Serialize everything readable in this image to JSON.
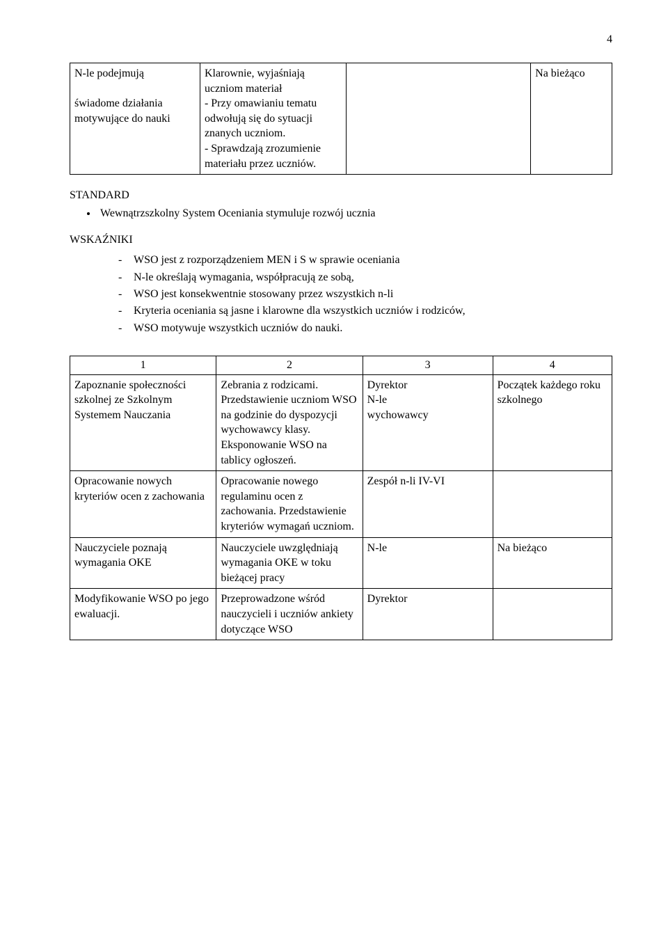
{
  "page_number": "4",
  "top_table": {
    "rows": [
      {
        "c1": "N-le podejmują\n\nświadome działania motywujące do nauki",
        "c2": "Klarownie, wyjaśniają uczniom materiał\n- Przy omawianiu tematu odwołują się do sytuacji znanych uczniom.\n- Sprawdzają zrozumienie materiału przez uczniów.",
        "c3": "",
        "c4": "Na bieżąco"
      }
    ]
  },
  "standard": {
    "title": "STANDARD",
    "bullet": "Wewnątrzszkolny System Oceniania stymuluje rozwój ucznia"
  },
  "wskazniki": {
    "title": "WSKAŹNIKI",
    "items": [
      "WSO jest z rozporządzeniem MEN i S w sprawie oceniania",
      "N-le określają wymagania, współpracują ze sobą,",
      "WSO jest konsekwentnie stosowany przez wszystkich n-li",
      "Kryteria oceniania są jasne i klarowne dla wszystkich uczniów i rodziców,",
      "WSO motywuje wszystkich uczniów do nauki."
    ]
  },
  "bottom_table": {
    "header_nums": [
      "1",
      "2",
      "3",
      "4"
    ],
    "rows": [
      {
        "c1": "Zapoznanie społeczności szkolnej ze Szkolnym Systemem Nauczania",
        "c2": "Zebrania z rodzicami. Przedstawienie uczniom WSO na godzinie do dyspozycji wychowawcy klasy. Eksponowanie WSO na tablicy ogłoszeń.",
        "c3": "Dyrektor\nN-le\nwychowawcy",
        "c4": "Początek każdego roku szkolnego"
      },
      {
        "c1": "Opracowanie nowych kryteriów ocen z zachowania",
        "c2": "Opracowanie nowego regulaminu ocen z zachowania. Przedstawienie kryteriów wymagań uczniom.",
        "c3": " Zespół n-li IV-VI",
        "c4": ""
      },
      {
        "c1": "Nauczyciele poznają wymagania OKE",
        "c2": "Nauczyciele uwzględniają wymagania OKE w toku bieżącej pracy",
        "c3": "N-le",
        "c4": "Na bieżąco"
      },
      {
        "c1": "Modyfikowanie WSO po jego ewaluacji.",
        "c2": "Przeprowadzone wśród nauczycieli i uczniów ankiety dotyczące WSO",
        "c3": "Dyrektor",
        "c4": ""
      }
    ]
  }
}
